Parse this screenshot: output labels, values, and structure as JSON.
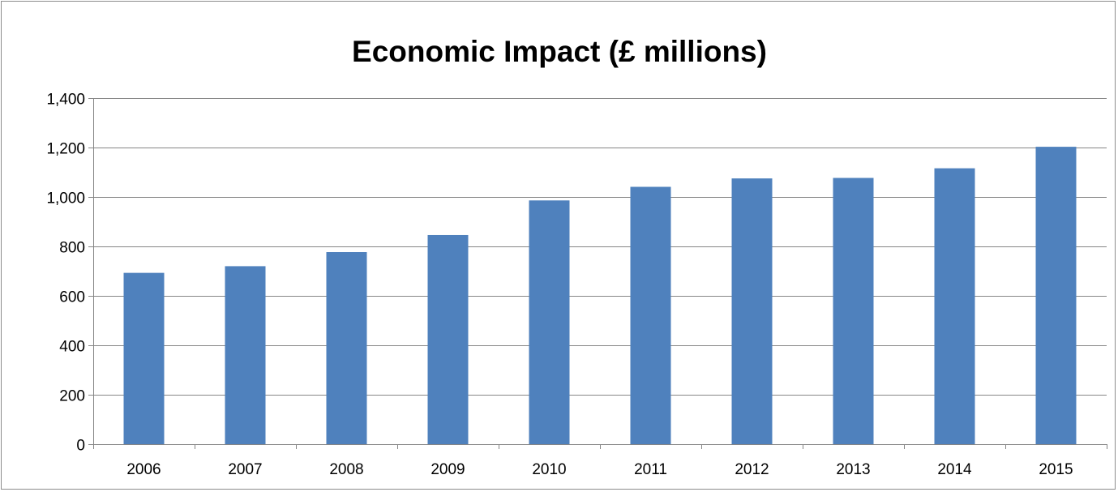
{
  "chart_data": {
    "type": "bar",
    "title": "Economic Impact (£ millions)",
    "xlabel": "",
    "ylabel": "",
    "categories": [
      "2006",
      "2007",
      "2008",
      "2009",
      "2010",
      "2011",
      "2012",
      "2013",
      "2014",
      "2015"
    ],
    "values": [
      693,
      720,
      777,
      846,
      986,
      1041,
      1075,
      1077,
      1116,
      1203
    ],
    "ylim": [
      0,
      1400
    ],
    "yticks": [
      0,
      200,
      400,
      600,
      800,
      1000,
      1200,
      1400
    ],
    "ytick_labels": [
      "0",
      "200",
      "400",
      "600",
      "800",
      "1,000",
      "1,200",
      "1,400"
    ],
    "grid": "horizontal",
    "legend": "none",
    "colors": {
      "bar": "#4f81bd",
      "grid": "#868686",
      "axis": "#868686"
    }
  }
}
